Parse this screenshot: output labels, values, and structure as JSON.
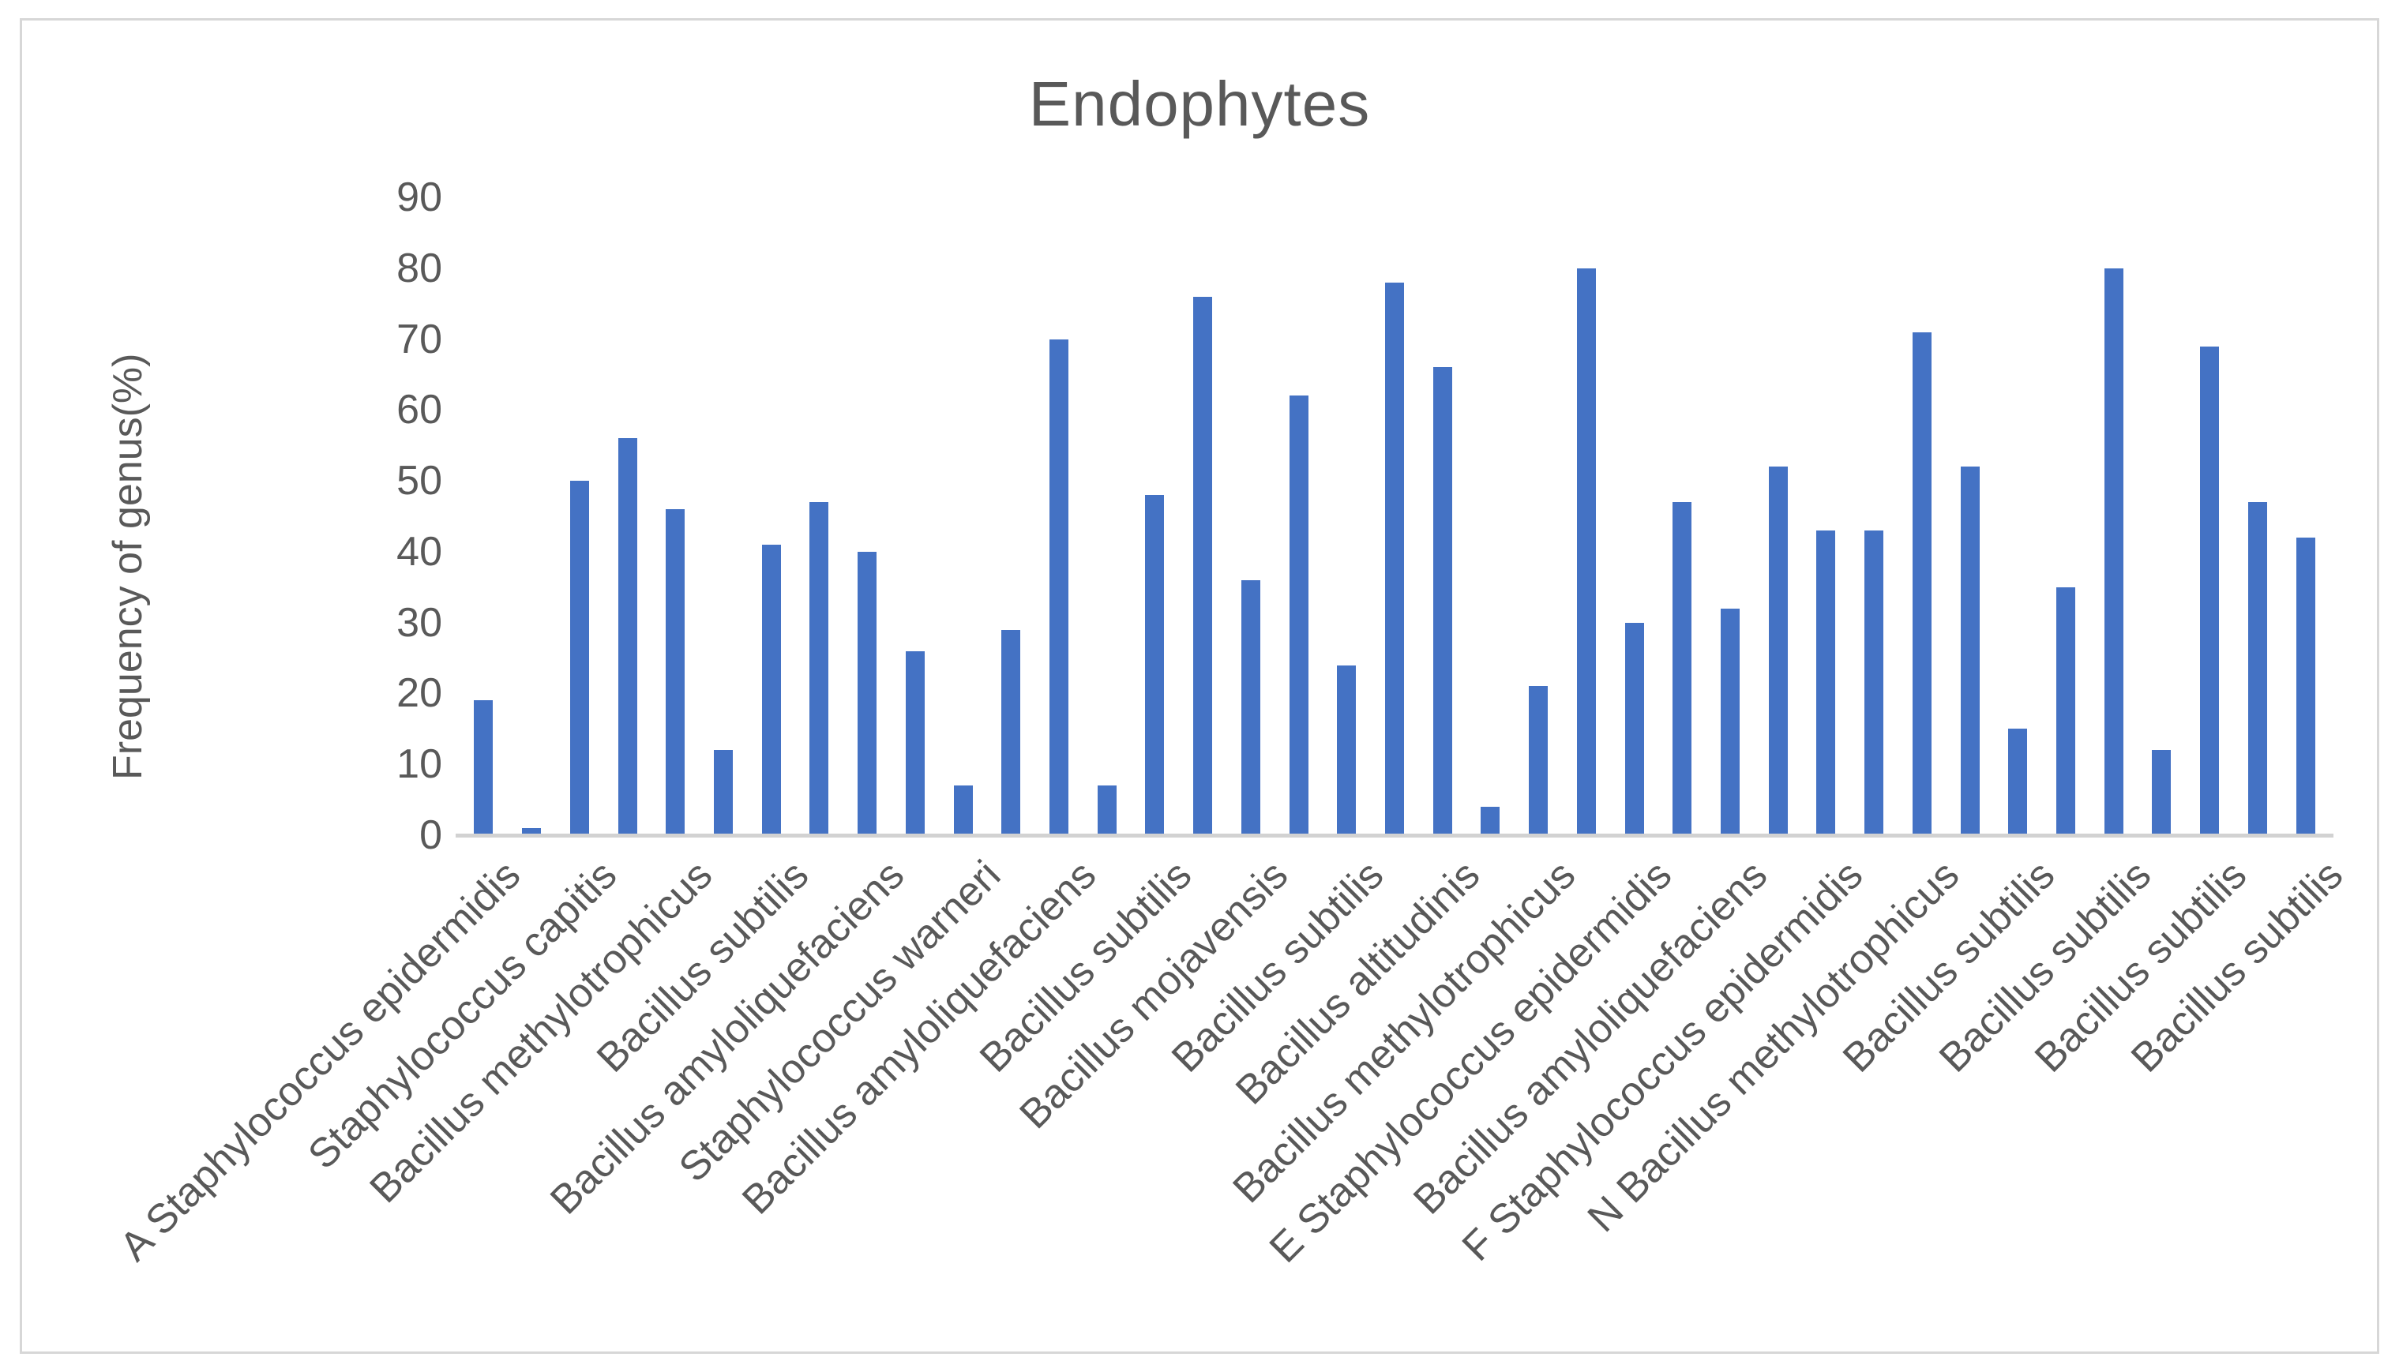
{
  "window": {
    "background": "#FFFFFF",
    "border_color": "#D7D7D7"
  },
  "chart_data": {
    "type": "bar",
    "title": "Endophytes",
    "ylabel": "Frequency of genus(%)",
    "xlabel": "",
    "ylim": [
      0,
      90
    ],
    "ytick_step": 10,
    "yticks": [
      0,
      10,
      20,
      30,
      40,
      50,
      60,
      70,
      80,
      90
    ],
    "grid": false,
    "legend": false,
    "bar_color": "#4472C4",
    "axis_line_color": "#D2D2D2",
    "text_color": "#595959",
    "values": [
      19,
      1,
      50,
      56,
      46,
      12,
      41,
      47,
      40,
      26,
      7,
      29,
      70,
      7,
      48,
      76,
      36,
      62,
      24,
      78,
      66,
      4,
      21,
      80,
      30,
      47,
      32,
      52,
      43,
      43,
      71,
      52,
      15,
      35,
      80,
      12,
      69,
      47,
      42
    ],
    "x_tick_labels": [
      "A Staphylococcus epidermidis",
      "Staphylococcus capitis",
      "Bacillus methylotrophicus",
      "Bacillus subtilis",
      "Bacillus amyloliquefaciens",
      "Staphylococcus warneri",
      "Bacillus amyloliquefaciens",
      "Bacillus subtilis",
      "Bacillus mojavensis",
      "Bacillus subtilis",
      "Bacillus altitudinis",
      "Bacillus methylotrophicus",
      "E Staphylococcus epidermidis",
      "Bacillus amyloliquefaciens",
      "F Staphylococcus epidermidis",
      "N Bacillus methylotrophicus",
      "Bacillus subtilis",
      "Bacillus subtilis",
      "Bacillus subtilis",
      "Bacillus subtilis"
    ],
    "x_label_every_nth_bar": 2
  }
}
